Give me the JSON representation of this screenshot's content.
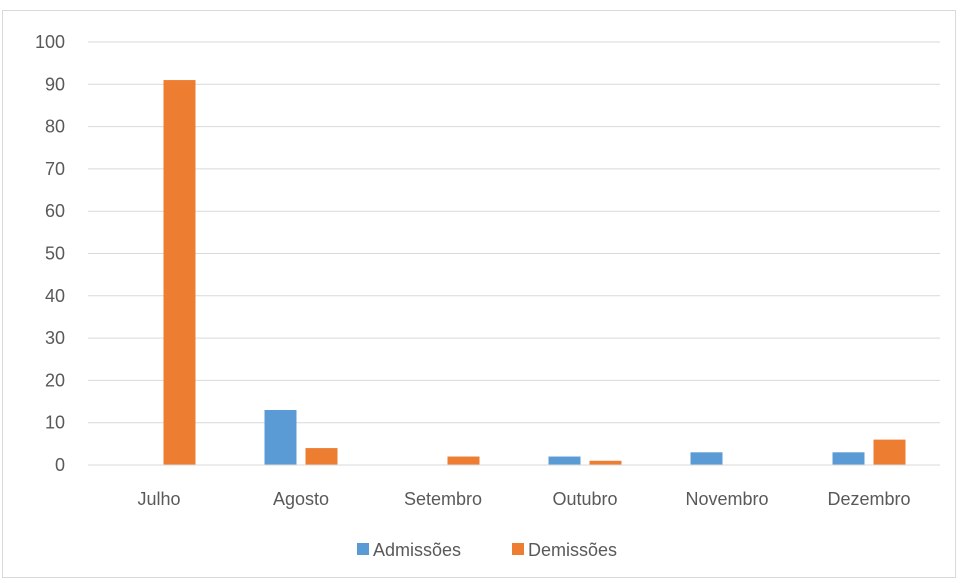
{
  "chart_data": {
    "type": "bar",
    "title": "",
    "xlabel": "",
    "ylabel": "",
    "categories": [
      "Julho",
      "Agosto",
      "Setembro",
      "Outubro",
      "Novembro",
      "Dezembro"
    ],
    "series": [
      {
        "name": "Admissões",
        "color": "#5b9bd5",
        "values": [
          0,
          13,
          0,
          2,
          3,
          3
        ]
      },
      {
        "name": "Demissões",
        "color": "#ed7d31",
        "values": [
          91,
          4,
          2,
          1,
          0,
          6
        ]
      }
    ],
    "ylim": [
      0,
      100
    ],
    "yticks": [
      0,
      10,
      20,
      30,
      40,
      50,
      60,
      70,
      80,
      90,
      100
    ],
    "grid": true,
    "legend_position": "bottom"
  }
}
